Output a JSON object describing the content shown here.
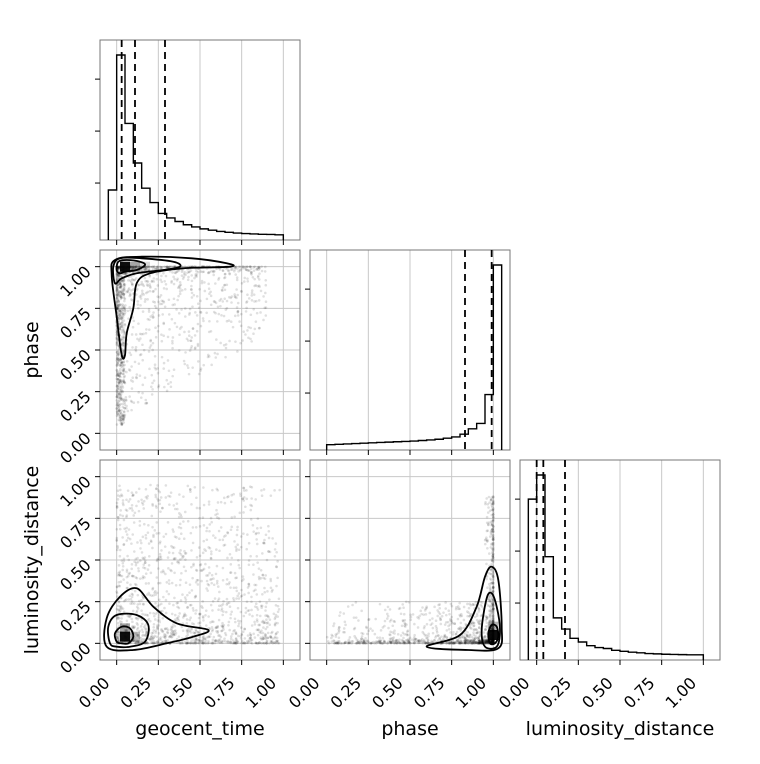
{
  "chart_data": {
    "type": "corner",
    "parameters": [
      "geocent_time",
      "phase",
      "luminosity_distance"
    ],
    "ticks": [
      0.0,
      0.25,
      0.5,
      0.75,
      1.0
    ],
    "tick_labels": [
      "0.00",
      "0.25",
      "0.50",
      "0.75",
      "1.00"
    ],
    "range": [
      -0.1,
      1.1
    ],
    "grid": true,
    "histograms": [
      {
        "parameter": "geocent_time",
        "bin_edges": [
          -0.05,
          0.0,
          0.05,
          0.1,
          0.15,
          0.2,
          0.25,
          0.3,
          0.35,
          0.4,
          0.45,
          0.5,
          0.55,
          0.6,
          0.65,
          0.7,
          0.75,
          0.8,
          0.85,
          0.9,
          0.95,
          1.0
        ],
        "counts": [
          0.25,
          1.0,
          0.62,
          0.4,
          0.26,
          0.18,
          0.12,
          0.095,
          0.075,
          0.057,
          0.045,
          0.034,
          0.027,
          0.02,
          0.015,
          0.011,
          0.008,
          0.006,
          0.004,
          0.003,
          0.001
        ],
        "quantiles": [
          0.03,
          0.11,
          0.29
        ]
      },
      {
        "parameter": "phase",
        "bin_edges": [
          0.0,
          0.05,
          0.1,
          0.15,
          0.2,
          0.25,
          0.3,
          0.35,
          0.4,
          0.45,
          0.5,
          0.55,
          0.6,
          0.65,
          0.7,
          0.75,
          0.8,
          0.85,
          0.9,
          0.95,
          1.0,
          1.05
        ],
        "counts": [
          0.002,
          0.004,
          0.006,
          0.008,
          0.01,
          0.012,
          0.014,
          0.016,
          0.018,
          0.02,
          0.022,
          0.025,
          0.028,
          0.032,
          0.038,
          0.045,
          0.06,
          0.09,
          0.12,
          0.28,
          1.0
        ],
        "quantiles": [
          0.83,
          0.99
        ]
      },
      {
        "parameter": "luminosity_distance",
        "bin_edges": [
          -0.05,
          0.0,
          0.05,
          0.1,
          0.15,
          0.2,
          0.25,
          0.3,
          0.35,
          0.4,
          0.45,
          0.5,
          0.55,
          0.6,
          0.65,
          0.7,
          0.75,
          0.8,
          0.85,
          0.9,
          0.95,
          1.0
        ],
        "counts": [
          0.84,
          0.97,
          0.53,
          0.2,
          0.14,
          0.09,
          0.07,
          0.05,
          0.04,
          0.035,
          0.025,
          0.02,
          0.015,
          0.012,
          0.008,
          0.006,
          0.004,
          0.003,
          0.002,
          0.001,
          0.001
        ],
        "quantiles": [
          0.0,
          0.04,
          0.17
        ]
      }
    ],
    "pairs": [
      {
        "x": "geocent_time",
        "y": "phase",
        "contours": [
          [
            [
              0.02,
              0.96
            ],
            [
              0.0,
              0.98
            ],
            [
              0.01,
              1.03
            ],
            [
              0.06,
              1.04
            ],
            [
              0.14,
              1.03
            ],
            [
              0.17,
              1.01
            ],
            [
              0.12,
              0.98
            ],
            [
              0.05,
              0.97
            ]
          ],
          [
            [
              -0.01,
              0.9
            ],
            [
              -0.02,
              1.0
            ],
            [
              0.02,
              1.05
            ],
            [
              0.15,
              1.05
            ],
            [
              0.34,
              1.03
            ],
            [
              0.38,
              1.0
            ],
            [
              0.28,
              0.98
            ],
            [
              0.12,
              0.96
            ],
            [
              0.03,
              0.93
            ]
          ],
          [
            [
              0.03,
              0.47
            ],
            [
              0.0,
              0.7
            ],
            [
              -0.03,
              0.95
            ],
            [
              -0.01,
              1.04
            ],
            [
              0.15,
              1.06
            ],
            [
              0.45,
              1.05
            ],
            [
              0.66,
              1.02
            ],
            [
              0.68,
              1.0
            ],
            [
              0.4,
              0.99
            ],
            [
              0.2,
              0.96
            ],
            [
              0.12,
              0.9
            ],
            [
              0.1,
              0.75
            ],
            [
              0.06,
              0.6
            ],
            [
              0.05,
              0.47
            ]
          ]
        ],
        "density_cells": [
          {
            "x": 0.05,
            "y": 1.0,
            "level": 0.95
          },
          {
            "x": 0.11,
            "y": 1.0,
            "level": 0.35
          },
          {
            "x": 0.17,
            "y": 1.0,
            "level": 0.15
          }
        ]
      },
      {
        "x": "geocent_time",
        "y": "luminosity_distance",
        "contours": [
          [
            [
              0.0,
              0.01
            ],
            [
              -0.01,
              0.06
            ],
            [
              0.03,
              0.1
            ],
            [
              0.08,
              0.09
            ],
            [
              0.1,
              0.04
            ],
            [
              0.07,
              0.0
            ],
            [
              0.03,
              0.0
            ]
          ],
          [
            [
              -0.04,
              0.0
            ],
            [
              -0.05,
              0.1
            ],
            [
              0.0,
              0.17
            ],
            [
              0.12,
              0.17
            ],
            [
              0.19,
              0.11
            ],
            [
              0.17,
              0.01
            ],
            [
              0.08,
              -0.02
            ],
            [
              0.0,
              -0.02
            ]
          ],
          [
            [
              -0.06,
              -0.02
            ],
            [
              -0.06,
              0.15
            ],
            [
              0.02,
              0.28
            ],
            [
              0.12,
              0.33
            ],
            [
              0.22,
              0.22
            ],
            [
              0.36,
              0.12
            ],
            [
              0.55,
              0.08
            ],
            [
              0.46,
              0.04
            ],
            [
              0.3,
              0.0
            ],
            [
              0.1,
              -0.04
            ]
          ]
        ],
        "density_cells": [
          {
            "x": 0.05,
            "y": 0.04,
            "level": 0.95
          },
          {
            "x": 0.05,
            "y": 0.09,
            "level": 0.35
          },
          {
            "x": 0.11,
            "y": 0.04,
            "level": 0.25
          }
        ]
      },
      {
        "x": "phase",
        "y": "luminosity_distance",
        "contours": [
          [
            [
              0.98,
              0.0
            ],
            [
              0.97,
              0.06
            ],
            [
              0.99,
              0.11
            ],
            [
              1.02,
              0.1
            ],
            [
              1.03,
              0.04
            ],
            [
              1.01,
              0.0
            ]
          ],
          [
            [
              0.95,
              -0.02
            ],
            [
              0.93,
              0.08
            ],
            [
              0.96,
              0.27
            ],
            [
              0.99,
              0.3
            ],
            [
              1.02,
              0.22
            ],
            [
              1.04,
              0.08
            ],
            [
              1.02,
              -0.02
            ]
          ],
          [
            [
              0.6,
              -0.02
            ],
            [
              0.8,
              0.05
            ],
            [
              0.9,
              0.22
            ],
            [
              0.95,
              0.4
            ],
            [
              0.99,
              0.46
            ],
            [
              1.03,
              0.38
            ],
            [
              1.05,
              0.1
            ],
            [
              1.03,
              -0.03
            ],
            [
              0.85,
              -0.04
            ]
          ]
        ],
        "density_cells": [
          {
            "x": 1.0,
            "y": 0.05,
            "level": 0.95
          },
          {
            "x": 1.0,
            "y": 0.1,
            "level": 0.3
          }
        ]
      }
    ]
  }
}
